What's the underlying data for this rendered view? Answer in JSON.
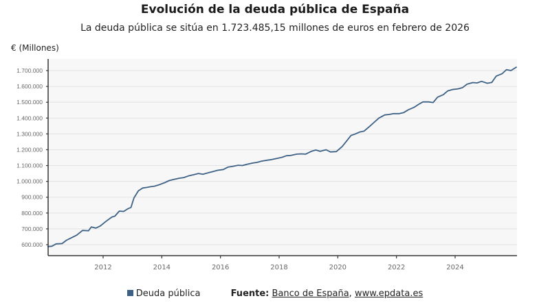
{
  "header": {
    "title": "Evolución de la deuda pública de España",
    "subtitle": "La deuda pública se sitúa en 1.723.485,15 millones de euros en febrero de 2026",
    "unit_label": "€ (Millones)"
  },
  "legend": {
    "series_label": "Deuda pública",
    "source_label": "Fuente:",
    "source_link_1": "Banco de España",
    "separator": ",",
    "source_link_2": "www.epdata.es"
  },
  "colors": {
    "line": "#3d6185",
    "plot_bg": "#f7f7f7",
    "grid": "#e2e2e2",
    "axis": "#333333"
  },
  "chart_data": {
    "type": "line",
    "title": "Evolución de la deuda pública de España",
    "subtitle": "La deuda pública se sitúa en 1.723.485,15 millones de euros en febrero de 2026",
    "xlabel": "",
    "ylabel": "€ (Millones)",
    "xlim": [
      2010.1,
      2026.1
    ],
    "ylim": [
      550000,
      1750000
    ],
    "grid": true,
    "legend_position": "bottom",
    "x_ticks": [
      2012,
      2014,
      2016,
      2018,
      2020,
      2022,
      2024
    ],
    "x_tick_labels": [
      "2012",
      "2014",
      "2016",
      "2018",
      "2020",
      "2022",
      "2024"
    ],
    "y_ticks": [
      600000,
      700000,
      800000,
      900000,
      1000000,
      1100000,
      1200000,
      1300000,
      1400000,
      1500000,
      1600000,
      1700000
    ],
    "y_tick_labels": [
      "600.000",
      "700.000",
      "800.000",
      "900.000",
      "1.000.000",
      "1.100.000",
      "1.200.000",
      "1.300.000",
      "1.400.000",
      "1.500.000",
      "1.600.000",
      "1.700.000"
    ],
    "series": [
      {
        "name": "Deuda pública",
        "x": [
          2010.1,
          2010.25,
          2010.4,
          2010.6,
          2010.75,
          2010.9,
          2011.1,
          2011.3,
          2011.5,
          2011.6,
          2011.75,
          2011.9,
          2012.1,
          2012.3,
          2012.4,
          2012.55,
          2012.7,
          2012.85,
          2012.95,
          2013.05,
          2013.2,
          2013.35,
          2013.5,
          2013.6,
          2013.75,
          2013.9,
          2014.1,
          2014.25,
          2014.4,
          2014.6,
          2014.75,
          2014.9,
          2015.1,
          2015.25,
          2015.4,
          2015.6,
          2015.75,
          2015.9,
          2016.1,
          2016.25,
          2016.4,
          2016.6,
          2016.75,
          2016.9,
          2017.1,
          2017.25,
          2017.4,
          2017.6,
          2017.75,
          2017.9,
          2018.1,
          2018.25,
          2018.4,
          2018.6,
          2018.75,
          2018.9,
          2019.1,
          2019.25,
          2019.4,
          2019.6,
          2019.75,
          2019.95,
          2020.15,
          2020.3,
          2020.45,
          2020.6,
          2020.75,
          2020.9,
          2021.1,
          2021.25,
          2021.4,
          2021.6,
          2021.75,
          2021.9,
          2022.1,
          2022.25,
          2022.4,
          2022.6,
          2022.75,
          2022.9,
          2023.1,
          2023.25,
          2023.4,
          2023.6,
          2023.75,
          2023.9,
          2024.1,
          2024.25,
          2024.4,
          2024.6,
          2024.75,
          2024.9,
          2025.1,
          2025.25,
          2025.4,
          2025.6,
          2025.75,
          2025.9,
          2026.1
        ],
        "values": [
          588000,
          590000,
          605000,
          607000,
          628000,
          642000,
          660000,
          690000,
          688000,
          712000,
          705000,
          718000,
          748000,
          775000,
          780000,
          812000,
          810000,
          828000,
          835000,
          895000,
          940000,
          958000,
          962000,
          966000,
          970000,
          978000,
          992000,
          1005000,
          1012000,
          1020000,
          1024000,
          1034000,
          1043000,
          1050000,
          1045000,
          1055000,
          1062000,
          1070000,
          1075000,
          1090000,
          1094000,
          1102000,
          1100000,
          1108000,
          1116000,
          1120000,
          1128000,
          1134000,
          1138000,
          1144000,
          1152000,
          1162000,
          1164000,
          1172000,
          1174000,
          1172000,
          1190000,
          1198000,
          1190000,
          1200000,
          1186000,
          1188000,
          1220000,
          1255000,
          1290000,
          1300000,
          1312000,
          1318000,
          1350000,
          1375000,
          1400000,
          1420000,
          1423000,
          1428000,
          1428000,
          1435000,
          1452000,
          1468000,
          1486000,
          1502000,
          1502000,
          1498000,
          1532000,
          1548000,
          1572000,
          1580000,
          1585000,
          1592000,
          1614000,
          1624000,
          1622000,
          1632000,
          1620000,
          1625000,
          1665000,
          1680000,
          1706000,
          1700000,
          1723485
        ]
      }
    ]
  }
}
